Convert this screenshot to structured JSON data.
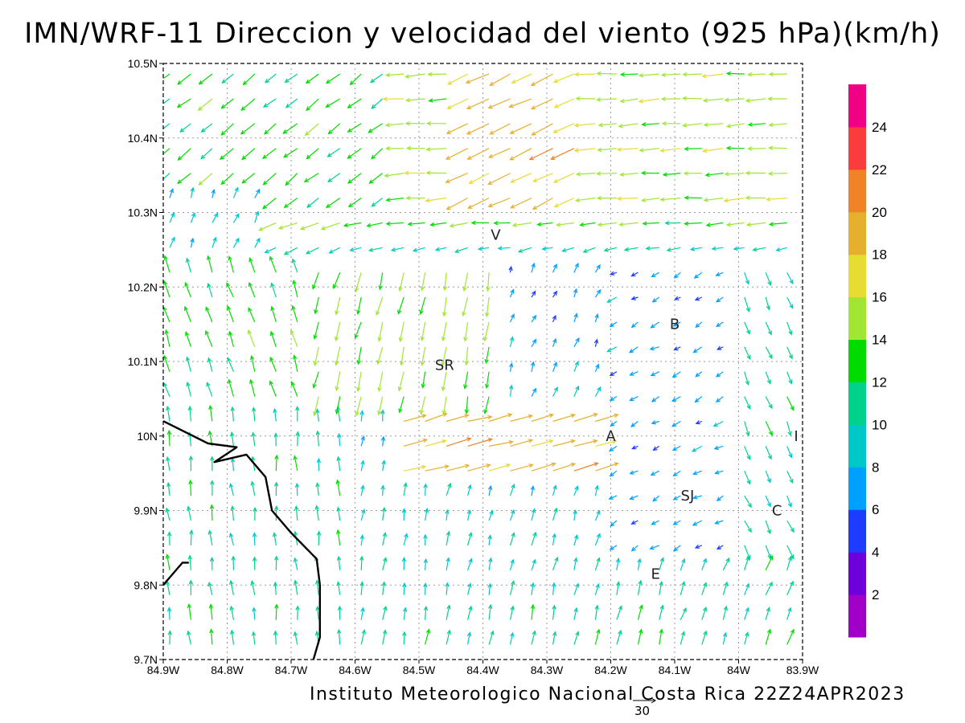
{
  "title": "IMN/WRF-11 Direccion y velocidad del viento (925 hPa)(km/h)",
  "credit": "Instituto Meteorologico Nacional Costa Rica 22Z24APR2023",
  "reference_vector_label": "30",
  "map": {
    "lon_ticks": [
      "84.9W",
      "84.8W",
      "84.7W",
      "84.6W",
      "84.5W",
      "84.4W",
      "84.3W",
      "84.2W",
      "84.1W",
      "84W",
      "83.9W"
    ],
    "lat_ticks": [
      "10.5N",
      "10.4N",
      "10.3N",
      "10.2N",
      "10.1N",
      "10N",
      "9.9N",
      "9.8N",
      "9.7N"
    ],
    "lon_range": [
      -84.9,
      -83.9
    ],
    "lat_range": [
      9.7,
      10.5
    ],
    "grid": true,
    "cities": [
      {
        "label": "V",
        "lon": -84.38,
        "lat": 10.27
      },
      {
        "label": "B",
        "lon": -84.1,
        "lat": 10.15
      },
      {
        "label": "SR",
        "lon": -84.46,
        "lat": 10.095
      },
      {
        "label": "A",
        "lon": -84.2,
        "lat": 10.0
      },
      {
        "label": "I",
        "lon": -83.91,
        "lat": 10.0
      },
      {
        "label": "SJ",
        "lon": -84.08,
        "lat": 9.92
      },
      {
        "label": "C",
        "lon": -83.94,
        "lat": 9.9
      },
      {
        "label": "E",
        "lon": -84.13,
        "lat": 9.815
      }
    ],
    "coastline": [
      [
        -84.9,
        10.02
      ],
      [
        -84.83,
        9.99
      ],
      [
        -84.785,
        9.985
      ],
      [
        -84.82,
        9.965
      ],
      [
        -84.77,
        9.975
      ],
      [
        -84.74,
        9.945
      ],
      [
        -84.73,
        9.9
      ],
      [
        -84.7,
        9.87
      ],
      [
        -84.66,
        9.835
      ],
      [
        -84.655,
        9.8
      ],
      [
        -84.655,
        9.73
      ],
      [
        -84.665,
        9.7
      ]
    ],
    "coastline_south": [
      [
        -84.9,
        9.8
      ],
      [
        -84.87,
        9.83
      ],
      [
        -84.86,
        9.83
      ]
    ]
  },
  "colorbar": {
    "colors": [
      "#a000c8",
      "#6e00dc",
      "#1e3cff",
      "#00a0ff",
      "#00c8c8",
      "#00d28c",
      "#00dc00",
      "#a0e632",
      "#e6dc32",
      "#e6af2d",
      "#f08228",
      "#fa3c3c",
      "#f00082"
    ],
    "labels": [
      "2",
      "4",
      "6",
      "8",
      "10",
      "12",
      "14",
      "16",
      "18",
      "20",
      "22",
      "24"
    ]
  }
}
